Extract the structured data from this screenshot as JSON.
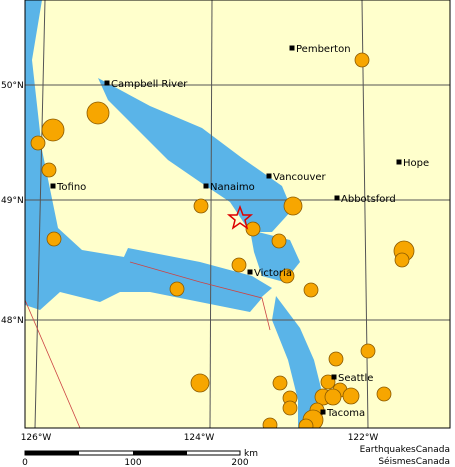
{
  "cities": [
    {
      "label": "Pemberton"
    },
    {
      "label": "Campbell River"
    },
    {
      "label": "Tofino"
    },
    {
      "label": "Nanaimo"
    },
    {
      "label": "Vancouver"
    },
    {
      "label": "Abbotsford"
    },
    {
      "label": "Hope"
    },
    {
      "label": "Victoria"
    },
    {
      "label": "Seattle"
    },
    {
      "label": "Tacoma"
    }
  ],
  "latitude_labels": [
    "50°N",
    "49°N",
    "48°N"
  ],
  "longitude_labels": [
    "126°W",
    "124°W",
    "122°W"
  ],
  "scale": {
    "labels": [
      "0",
      "100",
      "200"
    ],
    "unit": "km"
  },
  "credits": [
    "EarthquakesCanada",
    "SéismesCanada"
  ]
}
